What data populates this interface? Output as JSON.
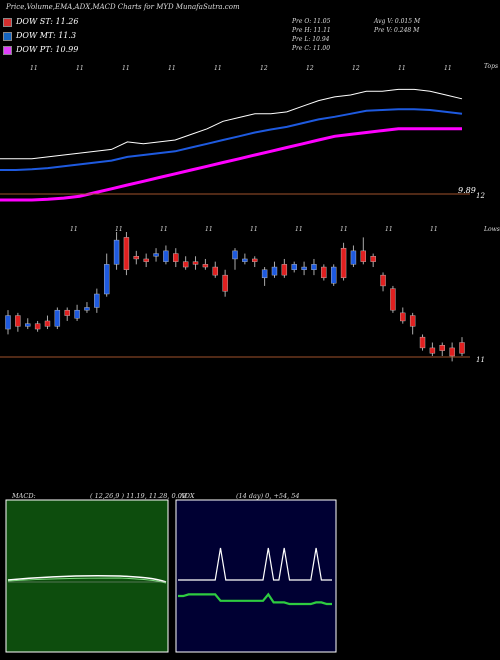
{
  "header": {
    "title": "Price,Volume,EMA,ADX,MACD Charts for MYD MunafaSutra.com"
  },
  "legend": [
    {
      "label": "DOW ST: 11.26",
      "color": "#d32f2f"
    },
    {
      "label": "DOW MT: 11.3",
      "color": "#1565c0"
    },
    {
      "label": "DOW PT: 10.99",
      "color": "#e040fb"
    }
  ],
  "stats": {
    "prev_o": "Pre   O: 11.05",
    "prev_h": "Pre   H: 11.11",
    "prev_l": "Pre   L: 10.94",
    "prev_c": "Pre   C: 11.00",
    "avg_v": "Avg V: 0.015 M",
    "pre_v": "Pre   V: 0.248  M"
  },
  "price_panel": {
    "label_top": "Tops",
    "label_low": "Lows",
    "price_label_1": "9.89",
    "price_label_2": "12",
    "price_label_3": "11",
    "top_marks": [
      "11",
      "11",
      "11",
      "11",
      "11",
      "12",
      "12",
      "12",
      "11",
      "11"
    ],
    "low_marks": [
      "11",
      "11",
      "11",
      "11",
      "11",
      "11",
      "11",
      "11",
      "11"
    ]
  },
  "macd_panel": {
    "label": "MACD:",
    "values": "( 12,26,9 ) 11.19, 11.28, 0.09"
  },
  "adx_panel": {
    "label": "ADX",
    "values": "(14  day) 0, +54, 54"
  },
  "colors": {
    "up": "#1e5adf",
    "down": "#e02020",
    "ema_fast": "#ffffff",
    "ema_mid": "#1e5adf",
    "ema_slow": "#ff00ff",
    "ema_brown": "#a0522d",
    "macd_bg": "#0d4d0d",
    "adx_bg": "#000033"
  },
  "chart_data": [
    {
      "type": "line",
      "title": "",
      "series": [
        {
          "values": [
            9.9,
            9.9,
            9.9,
            9.95,
            10.0,
            10.05,
            10.1,
            10.15,
            10.35,
            10.3,
            10.35,
            10.4,
            10.55,
            10.7,
            10.9,
            11.0,
            11.1,
            11.1,
            11.15,
            11.3,
            11.45,
            11.55,
            11.6,
            11.7,
            11.7,
            11.75,
            11.75,
            11.7,
            11.6,
            11.5
          ]
        },
        {
          "values": [
            9.6,
            9.6,
            9.62,
            9.65,
            9.7,
            9.75,
            9.8,
            9.85,
            9.95,
            10.0,
            10.05,
            10.1,
            10.2,
            10.3,
            10.4,
            10.5,
            10.6,
            10.68,
            10.75,
            10.85,
            10.95,
            11.02,
            11.1,
            11.18,
            11.2,
            11.22,
            11.22,
            11.2,
            11.15,
            11.1
          ]
        },
        {
          "values": [
            8.8,
            8.8,
            8.8,
            8.82,
            8.85,
            8.9,
            9.0,
            9.1,
            9.2,
            9.3,
            9.4,
            9.5,
            9.6,
            9.7,
            9.8,
            9.9,
            10.0,
            10.1,
            10.2,
            10.3,
            10.4,
            10.5,
            10.55,
            10.6,
            10.65,
            10.7,
            10.7,
            10.7,
            10.7,
            10.7
          ]
        }
      ]
    },
    {
      "type": "bar",
      "title": "",
      "candles": [
        {
          "o": 10.2,
          "c": 10.45,
          "h": 10.55,
          "l": 10.1
        },
        {
          "o": 10.45,
          "c": 10.25,
          "h": 10.5,
          "l": 10.15
        },
        {
          "o": 10.25,
          "c": 10.3,
          "h": 10.4,
          "l": 10.2
        },
        {
          "o": 10.3,
          "c": 10.2,
          "h": 10.35,
          "l": 10.15
        },
        {
          "o": 10.35,
          "c": 10.25,
          "h": 10.45,
          "l": 10.2
        },
        {
          "o": 10.25,
          "c": 10.55,
          "h": 10.6,
          "l": 10.2
        },
        {
          "o": 10.55,
          "c": 10.45,
          "h": 10.6,
          "l": 10.35
        },
        {
          "o": 10.4,
          "c": 10.55,
          "h": 10.65,
          "l": 10.35
        },
        {
          "o": 10.55,
          "c": 10.6,
          "h": 10.7,
          "l": 10.5
        },
        {
          "o": 10.6,
          "c": 10.85,
          "h": 10.95,
          "l": 10.5
        },
        {
          "o": 10.85,
          "c": 11.4,
          "h": 11.6,
          "l": 10.8
        },
        {
          "o": 11.4,
          "c": 11.85,
          "h": 12.0,
          "l": 11.3
        },
        {
          "o": 11.9,
          "c": 11.3,
          "h": 12.0,
          "l": 11.2
        },
        {
          "o": 11.55,
          "c": 11.5,
          "h": 11.65,
          "l": 11.4
        },
        {
          "o": 11.5,
          "c": 11.45,
          "h": 11.6,
          "l": 11.35
        },
        {
          "o": 11.55,
          "c": 11.6,
          "h": 11.7,
          "l": 11.45
        },
        {
          "o": 11.45,
          "c": 11.65,
          "h": 11.75,
          "l": 11.4
        },
        {
          "o": 11.6,
          "c": 11.45,
          "h": 11.7,
          "l": 11.35
        },
        {
          "o": 11.45,
          "c": 11.35,
          "h": 11.55,
          "l": 11.3
        },
        {
          "o": 11.45,
          "c": 11.4,
          "h": 11.55,
          "l": 11.3
        },
        {
          "o": 11.4,
          "c": 11.35,
          "h": 11.5,
          "l": 11.3
        },
        {
          "o": 11.35,
          "c": 11.2,
          "h": 11.45,
          "l": 11.15
        },
        {
          "o": 11.2,
          "c": 10.9,
          "h": 11.3,
          "l": 10.8
        },
        {
          "o": 11.5,
          "c": 11.65,
          "h": 11.7,
          "l": 11.3
        },
        {
          "o": 11.45,
          "c": 11.5,
          "h": 11.6,
          "l": 11.4
        },
        {
          "o": 11.5,
          "c": 11.45,
          "h": 11.55,
          "l": 11.35
        },
        {
          "o": 11.15,
          "c": 11.3,
          "h": 11.35,
          "l": 11.0
        },
        {
          "o": 11.2,
          "c": 11.35,
          "h": 11.45,
          "l": 11.15
        },
        {
          "o": 11.4,
          "c": 11.2,
          "h": 11.5,
          "l": 11.15
        },
        {
          "o": 11.3,
          "c": 11.4,
          "h": 11.45,
          "l": 11.25
        },
        {
          "o": 11.3,
          "c": 11.35,
          "h": 11.45,
          "l": 11.2
        },
        {
          "o": 11.3,
          "c": 11.4,
          "h": 11.5,
          "l": 11.2
        },
        {
          "o": 11.35,
          "c": 11.15,
          "h": 11.4,
          "l": 11.1
        },
        {
          "o": 11.05,
          "c": 11.35,
          "h": 11.4,
          "l": 11.0
        },
        {
          "o": 11.7,
          "c": 11.15,
          "h": 11.8,
          "l": 11.1
        },
        {
          "o": 11.4,
          "c": 11.65,
          "h": 11.75,
          "l": 11.35
        },
        {
          "o": 11.65,
          "c": 11.45,
          "h": 11.9,
          "l": 11.4
        },
        {
          "o": 11.55,
          "c": 11.45,
          "h": 11.6,
          "l": 11.35
        },
        {
          "o": 11.2,
          "c": 11.0,
          "h": 11.25,
          "l": 10.9
        },
        {
          "o": 10.95,
          "c": 10.55,
          "h": 11.0,
          "l": 10.5
        },
        {
          "o": 10.5,
          "c": 10.35,
          "h": 10.6,
          "l": 10.3
        },
        {
          "o": 10.45,
          "c": 10.25,
          "h": 10.5,
          "l": 10.1
        },
        {
          "o": 10.05,
          "c": 9.85,
          "h": 10.1,
          "l": 9.8
        },
        {
          "o": 9.85,
          "c": 9.75,
          "h": 9.95,
          "l": 9.7
        },
        {
          "o": 9.9,
          "c": 9.8,
          "h": 9.95,
          "l": 9.7
        },
        {
          "o": 9.85,
          "c": 9.7,
          "h": 9.95,
          "l": 9.6
        },
        {
          "o": 9.95,
          "c": 9.75,
          "h": 10.05,
          "l": 9.7
        }
      ]
    },
    {
      "type": "line",
      "title": "",
      "series": [
        {
          "values": [
            0,
            0,
            0,
            0,
            0,
            0,
            0,
            0,
            40,
            0,
            0,
            0,
            0,
            0,
            0,
            0,
            0,
            40,
            0,
            0,
            40,
            0,
            0,
            0,
            0,
            0,
            40,
            0,
            0,
            0
          ]
        },
        {
          "values": [
            20,
            20,
            22,
            22,
            22,
            22,
            22,
            22,
            14,
            14,
            14,
            14,
            14,
            14,
            14,
            14,
            14,
            22,
            12,
            12,
            12,
            10,
            10,
            10,
            10,
            10,
            12,
            12,
            10,
            10
          ]
        }
      ]
    }
  ]
}
